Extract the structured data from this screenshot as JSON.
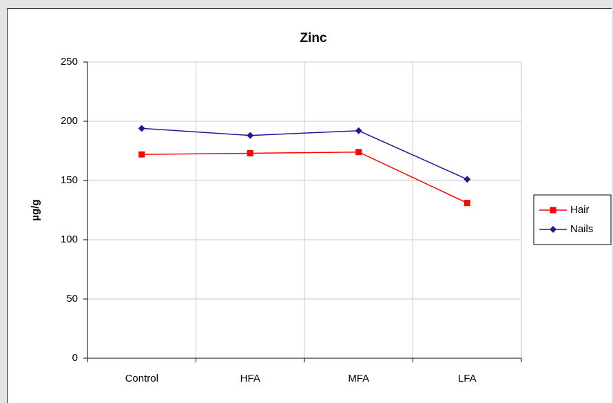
{
  "chart_data": {
    "type": "line",
    "title": "Zinc",
    "y_label": "µg/g",
    "categories": [
      "Control",
      "HFA",
      "MFA",
      "LFA"
    ],
    "series": [
      {
        "name": "Hair",
        "color": "#ff0000",
        "marker": "square",
        "values": [
          172,
          173,
          174,
          131
        ]
      },
      {
        "name": "Nails",
        "color": "#1a1a99",
        "marker": "diamond",
        "values": [
          194,
          188,
          192,
          151
        ]
      }
    ],
    "ylim": [
      0,
      250
    ],
    "yticks": [
      0,
      50,
      100,
      150,
      200,
      250
    ],
    "grid": true,
    "legend": "right"
  }
}
